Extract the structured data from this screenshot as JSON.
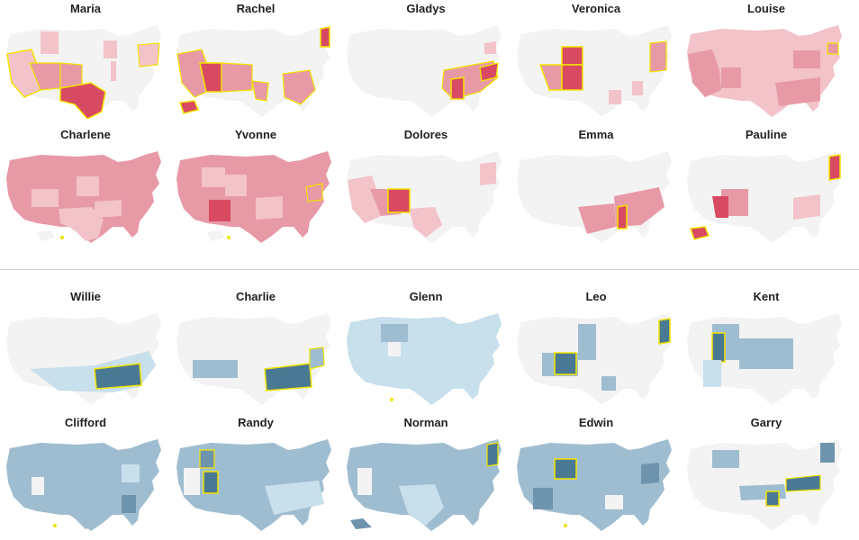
{
  "colors": {
    "female_base": "#f3f3f3",
    "female_light": "#f2c3c9",
    "female_mid": "#e79aa6",
    "female_dark": "#d84a62",
    "male_base": "#f3f3f3",
    "male_light": "#c8dfec",
    "male_mid": "#9fbdd0",
    "male_dark": "#4a7994",
    "highlight": "#f2e400"
  },
  "female_maps": [
    {
      "name": "Maria"
    },
    {
      "name": "Rachel"
    },
    {
      "name": "Gladys"
    },
    {
      "name": "Veronica"
    },
    {
      "name": "Louise"
    },
    {
      "name": "Charlene"
    },
    {
      "name": "Yvonne"
    },
    {
      "name": "Dolores"
    },
    {
      "name": "Emma"
    },
    {
      "name": "Pauline"
    }
  ],
  "male_maps": [
    {
      "name": "Willie"
    },
    {
      "name": "Charlie"
    },
    {
      "name": "Glenn"
    },
    {
      "name": "Leo"
    },
    {
      "name": "Kent"
    },
    {
      "name": "Clifford"
    },
    {
      "name": "Randy"
    },
    {
      "name": "Norman"
    },
    {
      "name": "Edwin"
    },
    {
      "name": "Garry"
    }
  ]
}
